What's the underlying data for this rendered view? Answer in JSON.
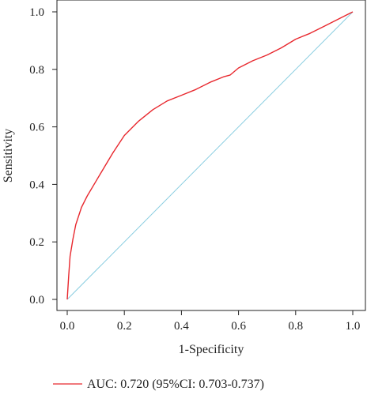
{
  "chart_data": {
    "type": "line",
    "title": "",
    "xlabel": "1-Specificity",
    "ylabel": "Sensitivity",
    "xlim": [
      0,
      1
    ],
    "ylim": [
      0,
      1
    ],
    "xticks": [
      "0.0",
      "0.2",
      "0.4",
      "0.6",
      "0.8",
      "1.0"
    ],
    "yticks": [
      "0.0",
      "0.2",
      "0.4",
      "0.6",
      "0.8",
      "1.0"
    ],
    "grid": false,
    "legend_position": "bottom-left",
    "series": [
      {
        "name": "AUC: 0.720 (95%CI: 0.703-0.737)",
        "color": "#e8282e",
        "x": [
          0,
          0.005,
          0.01,
          0.02,
          0.03,
          0.05,
          0.07,
          0.1,
          0.13,
          0.16,
          0.2,
          0.25,
          0.3,
          0.35,
          0.4,
          0.45,
          0.5,
          0.55,
          0.57,
          0.6,
          0.65,
          0.7,
          0.75,
          0.8,
          0.85,
          0.9,
          0.95,
          1.0
        ],
        "y": [
          0,
          0.08,
          0.15,
          0.21,
          0.26,
          0.32,
          0.36,
          0.41,
          0.46,
          0.51,
          0.57,
          0.62,
          0.66,
          0.69,
          0.71,
          0.73,
          0.755,
          0.775,
          0.78,
          0.805,
          0.83,
          0.85,
          0.875,
          0.905,
          0.925,
          0.95,
          0.975,
          1.0
        ]
      }
    ],
    "reference_line": {
      "x": [
        0,
        1
      ],
      "y": [
        0,
        1
      ],
      "color": "#89cde0"
    }
  }
}
